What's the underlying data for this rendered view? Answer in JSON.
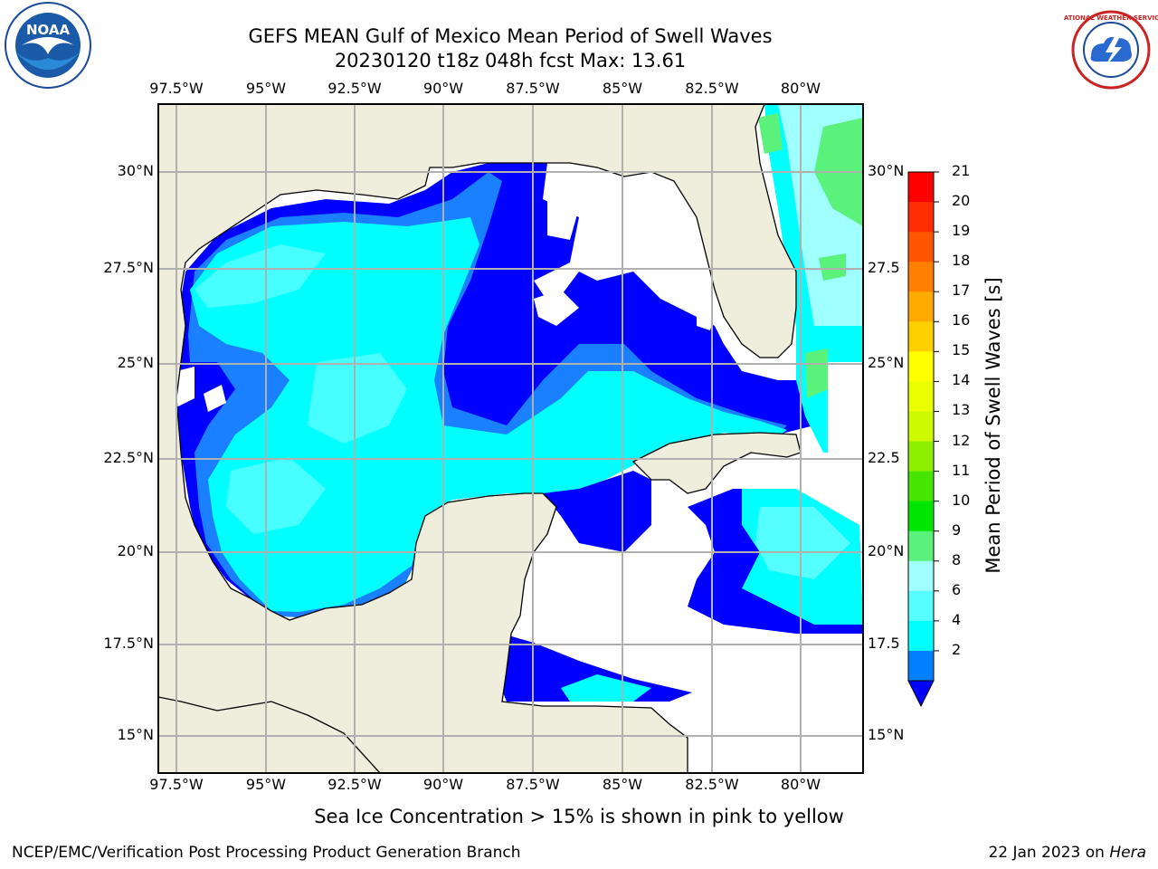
{
  "title_line1": "GEFS MEAN Gulf of Mexico Mean Period of Swell Waves",
  "title_line2": "20230120 t18z 048h fcst   Max: 13.61",
  "lon_labels": [
    "97.5°W",
    "95°W",
    "92.5°W",
    "90°W",
    "87.5°W",
    "85°W",
    "82.5°W",
    "80°W"
  ],
  "lat_labels_left": [
    "30°N",
    "27.5°N",
    "25°N",
    "22.5°N",
    "20°N",
    "17.5°N",
    "15°N"
  ],
  "lat_labels_right": [
    "30°N",
    "27.5",
    "25°N",
    "22.5",
    "20°N",
    "17.5",
    "15°N"
  ],
  "colorbar": {
    "title": "Mean Period of Swell Waves [s]",
    "ticks": [
      "21",
      "20",
      "19",
      "18",
      "17",
      "16",
      "15",
      "14",
      "13",
      "12",
      "11",
      "10",
      "9",
      "8",
      "6",
      "4",
      "2"
    ],
    "colors": [
      "#ff0000",
      "#ff2e00",
      "#ff5500",
      "#ff7f00",
      "#ffaa00",
      "#ffd000",
      "#ffff00",
      "#eaff00",
      "#cdfa00",
      "#8ef000",
      "#47e600",
      "#00e600",
      "#5af27a",
      "#a0ffff",
      "#55ffff",
      "#00ffff",
      "#0080ff",
      "#0000ff"
    ]
  },
  "map_colors": {
    "land": "#efeedc",
    "ocean_missing": "#ffffff",
    "deep_blue": "#0000ff",
    "mid_blue": "#1a80ff",
    "cyan": "#00ffff",
    "light_cyan": "#55ffff",
    "pale_cyan": "#a0ffff",
    "green": "#5af27a",
    "yellow_green": "#cdfa00",
    "grid": "#b0b0b0"
  },
  "logos": {
    "noaa_text": "NOAA",
    "nws_text": "NATIONAL WEATHER SERVICE"
  },
  "note": "Sea Ice Concentration > 15% is shown in pink to yellow",
  "footer_left": "NCEP/EMC/Verification Post Processing Product Generation Branch",
  "footer_right_prefix": "22 Jan 2023 on ",
  "footer_right_host": "Hera"
}
